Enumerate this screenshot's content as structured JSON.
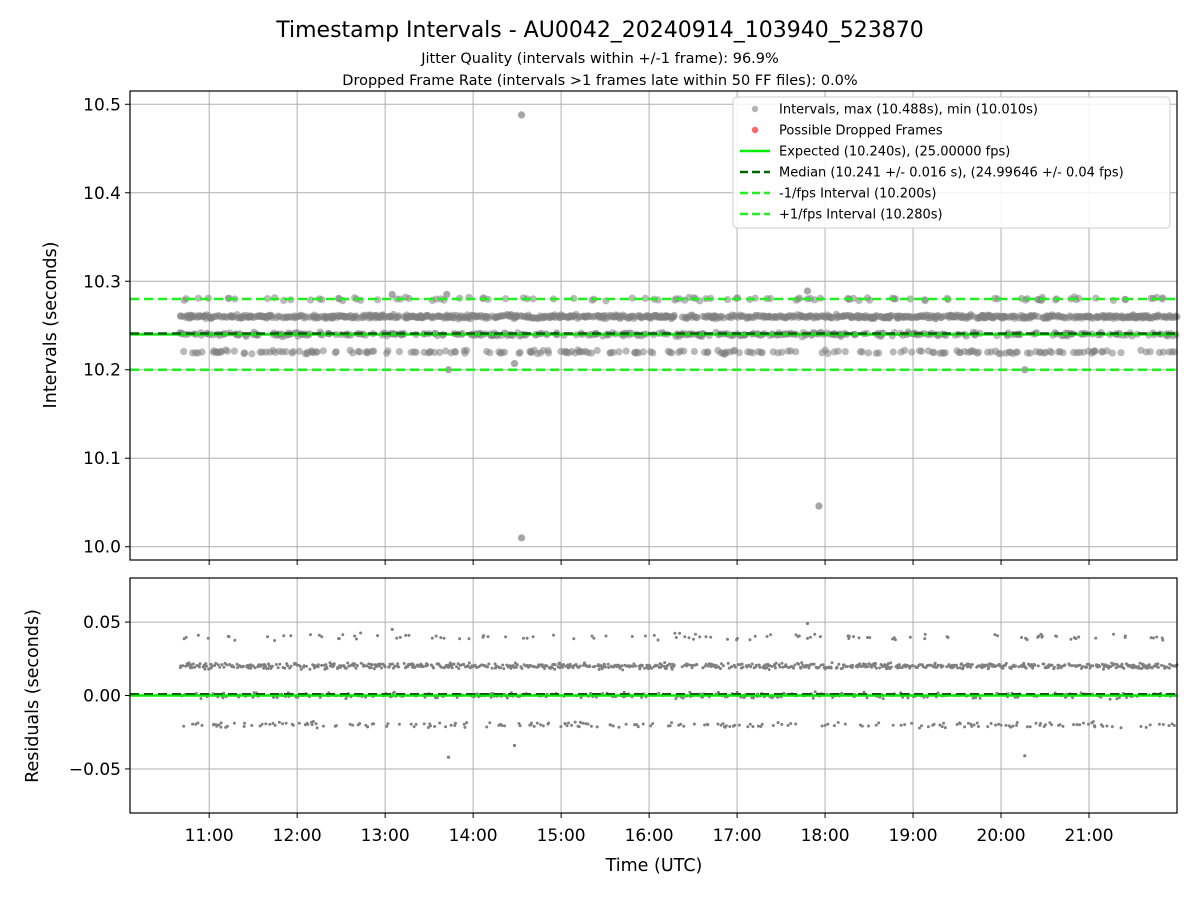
{
  "chart_data": {
    "title": "Timestamp Intervals - AU0042_20240914_103940_523870",
    "subtitle_1": "Jitter Quality (intervals within +/-1 frame): 96.9%",
    "subtitle_2": "Dropped Frame Rate (intervals >1 frames late within 50 FF files): 0.0%",
    "xlabel": "Time (UTC)",
    "x_ticks": [
      "11:00",
      "12:00",
      "13:00",
      "14:00",
      "15:00",
      "16:00",
      "17:00",
      "18:00",
      "19:00",
      "20:00",
      "21:00"
    ],
    "xlim_hours": [
      10.1,
      22.0
    ],
    "data_start_hour": 10.66,
    "data_end_hour": 22.0,
    "colors": {
      "points": "#808080",
      "dropped": "#ff0000",
      "expected": "#00ee00",
      "median": "#006400",
      "interval_band": "#22ee22",
      "grid": "#b0b0b0"
    },
    "top_panel": {
      "type": "scatter",
      "ylabel": "Intervals (seconds)",
      "ylim": [
        9.985,
        10.515
      ],
      "y_ticks": [
        "10.0",
        "10.1",
        "10.2",
        "10.3",
        "10.4",
        "10.5"
      ],
      "y_tick_values": [
        10.0,
        10.1,
        10.2,
        10.3,
        10.4,
        10.5
      ],
      "bands": [
        10.22,
        10.24,
        10.26,
        10.28
      ],
      "band_weights": [
        0.14,
        0.24,
        0.55,
        0.07
      ],
      "outliers": [
        {
          "x": 14.55,
          "y": 10.488
        },
        {
          "x": 14.55,
          "y": 10.01
        },
        {
          "x": 17.93,
          "y": 10.046
        },
        {
          "x": 13.72,
          "y": 10.2
        },
        {
          "x": 14.47,
          "y": 10.207
        },
        {
          "x": 20.27,
          "y": 10.2
        },
        {
          "x": 17.8,
          "y": 10.289
        },
        {
          "x": 13.08,
          "y": 10.285
        },
        {
          "x": 13.7,
          "y": 10.285
        }
      ],
      "expected": 10.24,
      "median": 10.241,
      "lower_interval": 10.2,
      "upper_interval": 10.28,
      "legend": {
        "placement": "top-right",
        "entries": [
          "Intervals, max (10.488s), min (10.010s)",
          "Possible Dropped Frames",
          "Expected (10.240s), (25.00000 fps)",
          "Median (10.241 +/- 0.016 s), (24.99646 +/- 0.04 fps)",
          "-1/fps Interval (10.200s)",
          "+1/fps Interval (10.280s)"
        ]
      }
    },
    "bottom_panel": {
      "type": "scatter",
      "ylabel": "Residuals (seconds)",
      "ylim": [
        -0.08,
        0.08
      ],
      "y_ticks": [
        "0.05",
        "0.00",
        "−0.05"
      ],
      "y_tick_values": [
        0.05,
        0.0,
        -0.05
      ],
      "bands": [
        -0.02,
        0.0,
        0.02,
        0.04
      ],
      "band_weights": [
        0.14,
        0.24,
        0.55,
        0.07
      ],
      "outliers": [
        {
          "x": 13.72,
          "y": -0.042
        },
        {
          "x": 14.47,
          "y": -0.034
        },
        {
          "x": 20.27,
          "y": -0.041
        },
        {
          "x": 17.8,
          "y": 0.049
        },
        {
          "x": 13.08,
          "y": 0.045
        }
      ],
      "median_residual": 0.001,
      "zero_line": 0.0
    }
  }
}
